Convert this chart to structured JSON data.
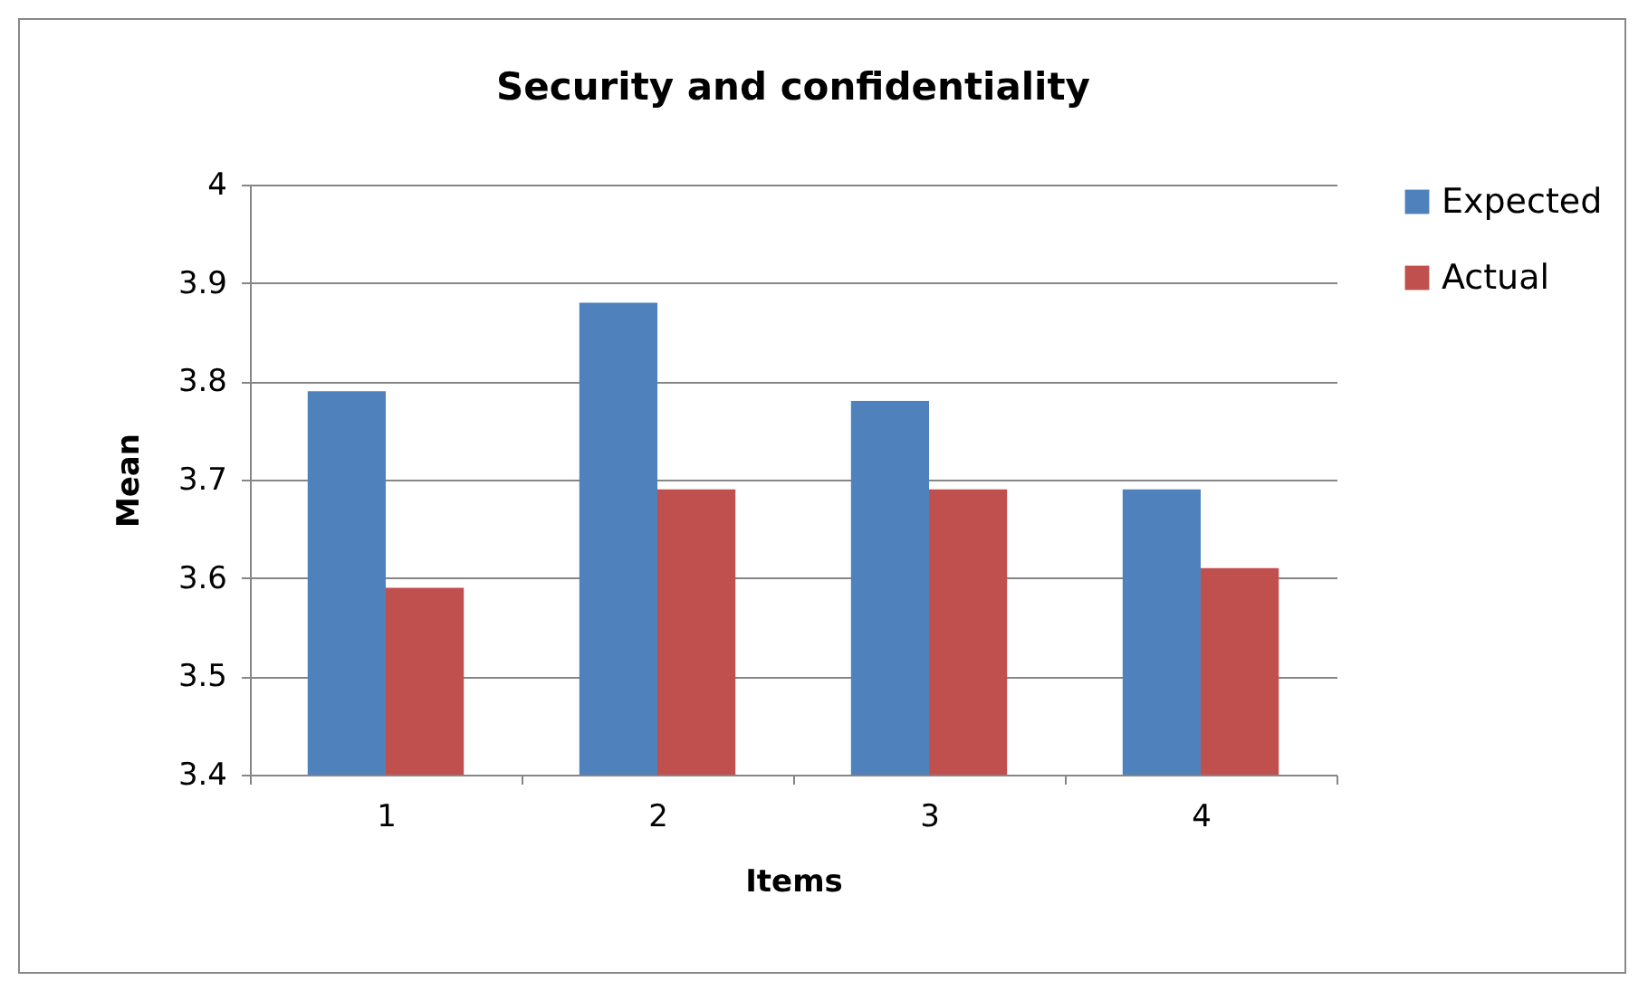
{
  "chart_data": {
    "type": "bar",
    "title": "Security and confidentiality",
    "xlabel": "Items",
    "ylabel": "Mean",
    "categories": [
      "1",
      "2",
      "3",
      "4"
    ],
    "series": [
      {
        "name": "Expected",
        "color": "#4f81bd",
        "values": [
          3.79,
          3.88,
          3.78,
          3.69
        ]
      },
      {
        "name": "Actual",
        "color": "#c0504d",
        "values": [
          3.59,
          3.69,
          3.69,
          3.61
        ]
      }
    ],
    "ylim": [
      3.4,
      4
    ],
    "yticks": [
      3.4,
      3.5,
      3.6,
      3.7,
      3.8,
      3.9,
      {
        "value": 4,
        "label": "4"
      }
    ],
    "grid": "y",
    "legend": "right"
  }
}
